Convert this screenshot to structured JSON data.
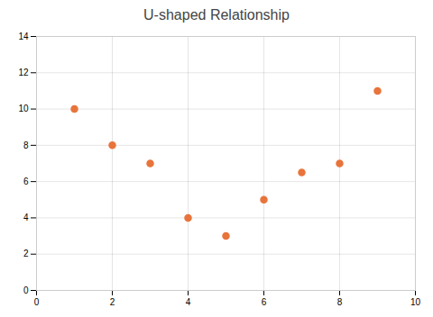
{
  "chart_data": {
    "type": "scatter",
    "title": "U-shaped Relationship",
    "x": [
      1,
      2,
      3,
      4,
      5,
      6,
      7,
      8,
      9
    ],
    "y": [
      10,
      8,
      7,
      4,
      3,
      5,
      6.5,
      7,
      11
    ],
    "color": "#E8743B",
    "marker": "circle",
    "xlim": [
      0,
      10
    ],
    "ylim": [
      0,
      14
    ],
    "xticks": [
      0,
      2,
      4,
      6,
      8,
      10
    ],
    "yticks": [
      0,
      2,
      4,
      6,
      8,
      10,
      12,
      14
    ],
    "grid": true
  }
}
